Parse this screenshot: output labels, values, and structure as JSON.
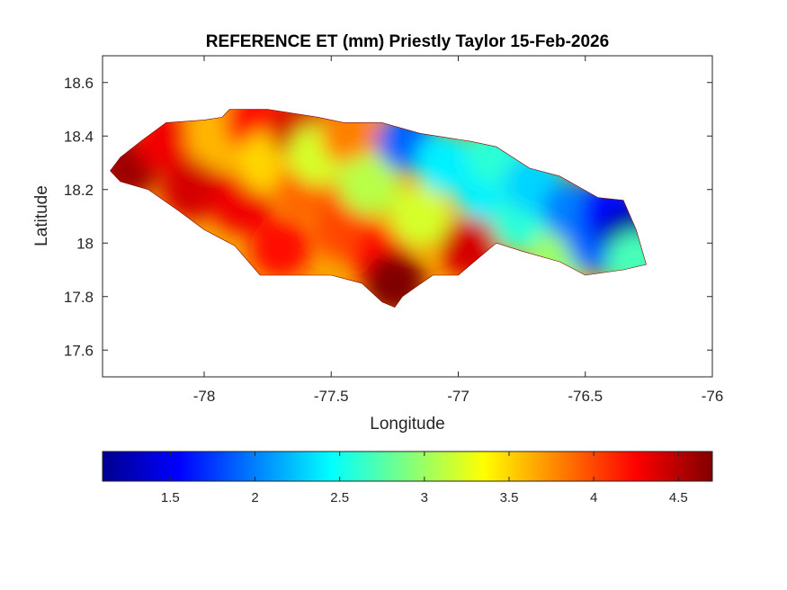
{
  "chart_data": {
    "type": "heatmap",
    "title": "REFERENCE ET (mm) Priestly Taylor 15-Feb-2026",
    "xlabel": "Longitude",
    "ylabel": "Latitude",
    "xlim": [
      -78.4,
      -76.0
    ],
    "ylim": [
      17.5,
      18.7
    ],
    "xticks": [
      -78,
      -77.5,
      -77,
      -76.5,
      -76
    ],
    "xtick_labels": [
      "-78",
      "-77.5",
      "-77",
      "-76.5",
      "-76"
    ],
    "yticks": [
      17.6,
      17.8,
      18.0,
      18.2,
      18.4,
      18.6
    ],
    "ytick_labels": [
      "17.6",
      "17.8",
      "18",
      "18.2",
      "18.4",
      "18.6"
    ],
    "grid": false,
    "colormap": "jet",
    "colorbar": {
      "orientation": "horizontal",
      "location": "below",
      "clim": [
        1.1,
        4.7
      ],
      "ticks": [
        1.5,
        2,
        2.5,
        3,
        3.5,
        4,
        4.5
      ],
      "tick_labels": [
        "1.5",
        "2",
        "2.5",
        "3",
        "3.5",
        "4",
        "4.5"
      ]
    },
    "units": "mm",
    "region_outline": [
      [
        -78.37,
        18.27
      ],
      [
        -78.33,
        18.32
      ],
      [
        -78.25,
        18.38
      ],
      [
        -78.15,
        18.45
      ],
      [
        -78.0,
        18.46
      ],
      [
        -77.93,
        18.47
      ],
      [
        -77.9,
        18.5
      ],
      [
        -77.75,
        18.5
      ],
      [
        -77.55,
        18.47
      ],
      [
        -77.45,
        18.45
      ],
      [
        -77.3,
        18.45
      ],
      [
        -77.15,
        18.41
      ],
      [
        -76.95,
        18.38
      ],
      [
        -76.85,
        18.36
      ],
      [
        -76.72,
        18.28
      ],
      [
        -76.6,
        18.25
      ],
      [
        -76.45,
        18.17
      ],
      [
        -76.35,
        18.16
      ],
      [
        -76.3,
        18.05
      ],
      [
        -76.26,
        17.92
      ],
      [
        -76.35,
        17.9
      ],
      [
        -76.5,
        17.88
      ],
      [
        -76.6,
        17.93
      ],
      [
        -76.75,
        17.97
      ],
      [
        -76.85,
        18.0
      ],
      [
        -76.9,
        17.96
      ],
      [
        -77.0,
        17.88
      ],
      [
        -77.1,
        17.88
      ],
      [
        -77.16,
        17.84
      ],
      [
        -77.22,
        17.8
      ],
      [
        -77.25,
        17.76
      ],
      [
        -77.3,
        17.78
      ],
      [
        -77.38,
        17.85
      ],
      [
        -77.5,
        17.88
      ],
      [
        -77.6,
        17.88
      ],
      [
        -77.78,
        17.88
      ],
      [
        -77.88,
        17.99
      ],
      [
        -78.0,
        18.05
      ],
      [
        -78.1,
        18.12
      ],
      [
        -78.22,
        18.2
      ],
      [
        -78.33,
        18.23
      ],
      [
        -78.37,
        18.27
      ]
    ],
    "field_samples": [
      {
        "lon": -78.3,
        "lat": 18.28,
        "et": 4.6
      },
      {
        "lon": -78.15,
        "lat": 18.38,
        "et": 4.3
      },
      {
        "lon": -78.05,
        "lat": 18.2,
        "et": 4.4
      },
      {
        "lon": -77.95,
        "lat": 18.4,
        "et": 3.6
      },
      {
        "lon": -77.85,
        "lat": 18.15,
        "et": 4.3
      },
      {
        "lon": -77.8,
        "lat": 18.45,
        "et": 4.2
      },
      {
        "lon": -77.75,
        "lat": 18.3,
        "et": 3.5
      },
      {
        "lon": -77.7,
        "lat": 17.98,
        "et": 4.2
      },
      {
        "lon": -77.62,
        "lat": 18.42,
        "et": 4.4
      },
      {
        "lon": -77.6,
        "lat": 18.2,
        "et": 3.9
      },
      {
        "lon": -77.55,
        "lat": 18.33,
        "et": 3.2
      },
      {
        "lon": -77.45,
        "lat": 18.05,
        "et": 4.0
      },
      {
        "lon": -77.42,
        "lat": 18.4,
        "et": 3.8
      },
      {
        "lon": -77.35,
        "lat": 18.22,
        "et": 3.1
      },
      {
        "lon": -77.3,
        "lat": 17.95,
        "et": 4.2
      },
      {
        "lon": -77.25,
        "lat": 17.85,
        "et": 4.7
      },
      {
        "lon": -77.2,
        "lat": 18.38,
        "et": 1.9
      },
      {
        "lon": -77.15,
        "lat": 18.1,
        "et": 3.2
      },
      {
        "lon": -77.05,
        "lat": 18.3,
        "et": 2.4
      },
      {
        "lon": -76.95,
        "lat": 17.98,
        "et": 4.4
      },
      {
        "lon": -76.9,
        "lat": 18.2,
        "et": 2.4
      },
      {
        "lon": -76.85,
        "lat": 18.33,
        "et": 2.6
      },
      {
        "lon": -76.75,
        "lat": 18.08,
        "et": 2.6
      },
      {
        "lon": -76.7,
        "lat": 18.22,
        "et": 2.3
      },
      {
        "lon": -76.6,
        "lat": 17.95,
        "et": 3.0
      },
      {
        "lon": -76.55,
        "lat": 18.12,
        "et": 2.0
      },
      {
        "lon": -76.45,
        "lat": 18.0,
        "et": 1.9
      },
      {
        "lon": -76.4,
        "lat": 18.12,
        "et": 1.6
      },
      {
        "lon": -76.32,
        "lat": 18.02,
        "et": 1.2
      },
      {
        "lon": -76.3,
        "lat": 17.93,
        "et": 2.7
      }
    ]
  }
}
